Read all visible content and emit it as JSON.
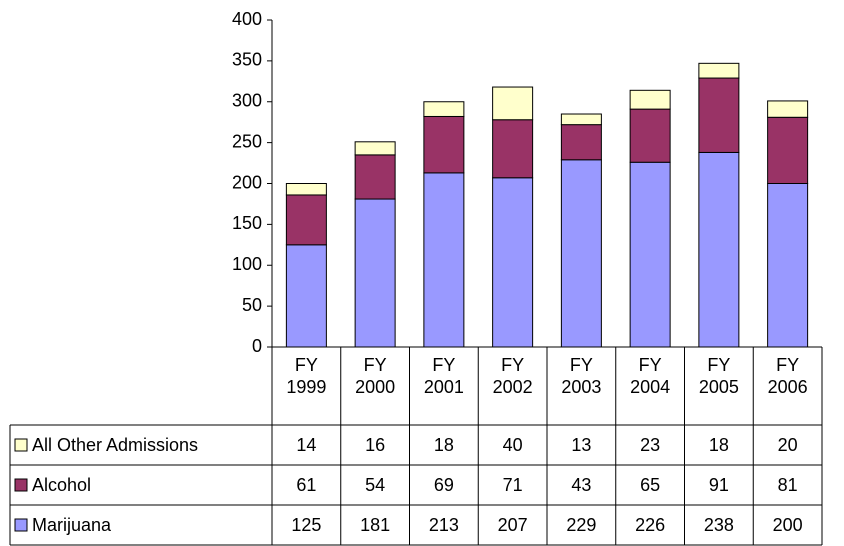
{
  "chart_data": {
    "type": "stacked-bar",
    "categories": [
      "FY 1999",
      "FY 2000",
      "FY 2001",
      "FY 2002",
      "FY 2003",
      "FY 2004",
      "FY 2005",
      "FY 2006"
    ],
    "series": [
      {
        "name": "Marijuana",
        "color": "#9999ff",
        "values": [
          125,
          181,
          213,
          207,
          229,
          226,
          238,
          200
        ]
      },
      {
        "name": "Alcohol",
        "color": "#993366",
        "values": [
          61,
          54,
          69,
          71,
          43,
          65,
          91,
          81
        ]
      },
      {
        "name": "All Other Admissions",
        "color": "#ffffcc",
        "values": [
          14,
          16,
          18,
          40,
          13,
          23,
          18,
          20
        ]
      }
    ],
    "ylim": [
      0,
      400
    ],
    "yticks": [
      0,
      50,
      100,
      150,
      200,
      250,
      300,
      350,
      400
    ],
    "grid": false
  }
}
